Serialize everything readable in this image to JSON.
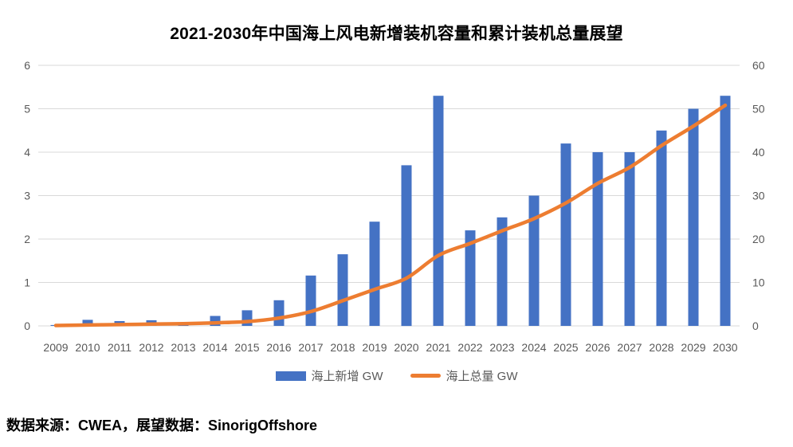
{
  "chart_data": {
    "type": "bar+line",
    "title": "2021-2030年中国海上风电新增装机容量和累计装机总量展望",
    "categories": [
      "2009",
      "2010",
      "2011",
      "2012",
      "2013",
      "2014",
      "2015",
      "2016",
      "2017",
      "2018",
      "2019",
      "2020",
      "2021",
      "2022",
      "2023",
      "2024",
      "2025",
      "2026",
      "2027",
      "2028",
      "2029",
      "2030"
    ],
    "series": [
      {
        "name": "海上新增 GW",
        "type": "bar",
        "axis": "left",
        "color": "#4472C4",
        "values": [
          0.02,
          0.14,
          0.11,
          0.13,
          0.04,
          0.23,
          0.36,
          0.59,
          1.16,
          1.65,
          2.4,
          3.7,
          5.3,
          2.2,
          2.5,
          3.0,
          4.2,
          4.0,
          4.0,
          4.5,
          5.0,
          5.3
        ]
      },
      {
        "name": "海上总量 GW",
        "type": "line",
        "axis": "right",
        "color": "#ED7D31",
        "values": [
          0.1,
          0.2,
          0.3,
          0.4,
          0.5,
          0.7,
          1.0,
          1.8,
          3.3,
          5.8,
          8.4,
          11.0,
          16.2,
          19.0,
          21.9,
          24.7,
          28.3,
          32.8,
          36.5,
          41.5,
          46.0,
          50.8
        ]
      }
    ],
    "left_axis": {
      "range": [
        0,
        6
      ],
      "ticks": [
        0,
        1,
        2,
        3,
        4,
        5,
        6
      ]
    },
    "right_axis": {
      "range": [
        0,
        60
      ],
      "ticks": [
        0,
        10,
        20,
        30,
        40,
        50,
        60
      ]
    },
    "grid": "horizontal",
    "legend_position": "bottom"
  },
  "source_note": "数据来源：CWEA，展望数据：SinorigOffshore",
  "colors": {
    "bar": "#4472C4",
    "line": "#ED7D31",
    "gridline": "#D9D9D9",
    "axis_text": "#595959",
    "title_text": "#000000"
  }
}
